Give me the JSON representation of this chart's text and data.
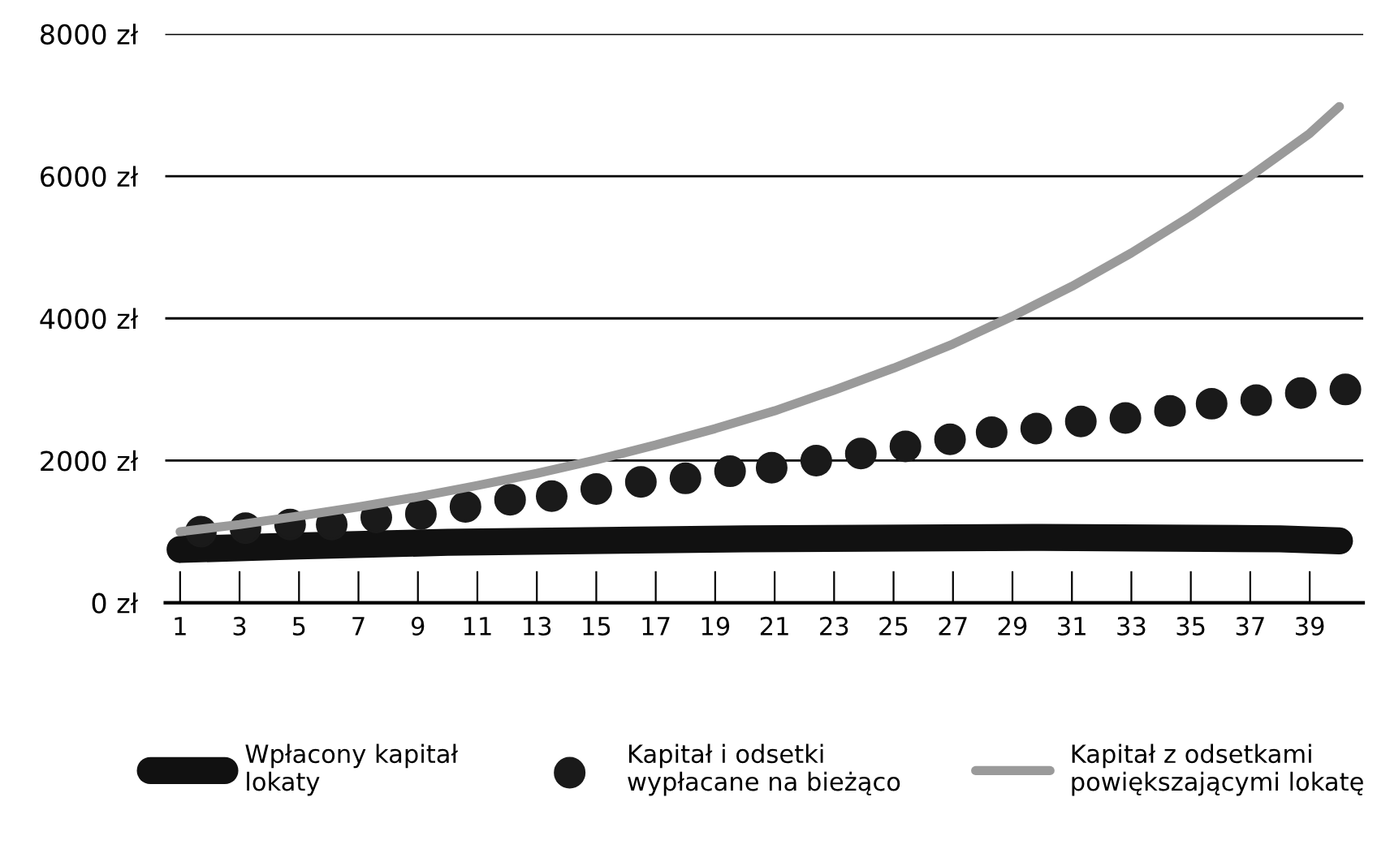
{
  "chart_data": {
    "type": "line",
    "series": [
      {
        "name": "Wpłacony kapitał\nlokaty",
        "color": "#111111",
        "x": [
          1,
          5,
          10,
          20,
          30,
          38,
          40
        ],
        "values": [
          750,
          800,
          850,
          900,
          920,
          900,
          870
        ]
      },
      {
        "type": "scatter",
        "name": "Kapitał i odsetki\nwypłacane na bieżąco",
        "color": "#1a1a1a",
        "marker": "circle",
        "x": [
          1.7,
          3.2,
          4.7,
          6.1,
          7.6,
          9.1,
          10.6,
          12.1,
          13.5,
          15.0,
          16.5,
          18.0,
          19.5,
          20.9,
          22.4,
          23.9,
          25.4,
          26.9,
          28.3,
          29.8,
          31.3,
          32.8,
          34.3,
          35.7,
          37.2,
          38.7,
          40.2
        ],
        "values": [
          1000,
          1050,
          1100,
          1100,
          1200,
          1250,
          1350,
          1450,
          1500,
          1600,
          1700,
          1750,
          1850,
          1900,
          2000,
          2100,
          2200,
          2300,
          2400,
          2450,
          2550,
          2600,
          2700,
          2800,
          2850,
          2950,
          3000
        ]
      },
      {
        "name": "Kapitał z odsetkami\npowiększającymi lokatę",
        "color": "#9a9a9a",
        "x": [
          1,
          3,
          5,
          7,
          9,
          11,
          13,
          15,
          17,
          19,
          21,
          23,
          25,
          27,
          29,
          31,
          33,
          35,
          37,
          39,
          40
        ],
        "values": [
          1000,
          1100,
          1220,
          1350,
          1490,
          1650,
          1820,
          2010,
          2220,
          2450,
          2700,
          2990,
          3300,
          3640,
          4030,
          4450,
          4920,
          5440,
          6000,
          6600,
          6980
        ]
      }
    ],
    "xlim": [
      0.5,
      40.8
    ],
    "xticks": [
      1,
      3,
      5,
      7,
      9,
      11,
      13,
      15,
      17,
      19,
      21,
      23,
      25,
      27,
      29,
      31,
      33,
      35,
      37,
      39
    ],
    "ylim": [
      0,
      8000
    ],
    "yticks": [
      {
        "value": 0,
        "label": "0 zł"
      },
      {
        "value": 2000,
        "label": "2000 zł"
      },
      {
        "value": 4000,
        "label": "4000 zł"
      },
      {
        "value": 6000,
        "label": "6000 zł"
      },
      {
        "value": 8000,
        "label": "8000 zł"
      }
    ],
    "grid": "y",
    "legend": "bottom"
  }
}
